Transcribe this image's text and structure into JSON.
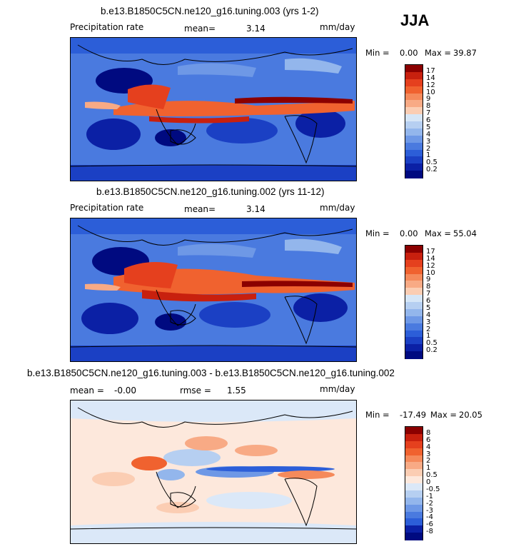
{
  "season": "JJA",
  "units": "mm/day",
  "chart_data": [
    {
      "type": "heatmap",
      "title": "b.e13.B1850C5CN.ne120_g16.tuning.003 (yrs 1-2)",
      "field_label": "Precipitation rate",
      "stat1_label": "mean=",
      "stat1_value": "3.14",
      "units": "mm/day",
      "min_label": "Min =",
      "min_value": "0.00",
      "max_label": "Max =",
      "max_value": "39.87",
      "colorbar_levels": [
        "17",
        "14",
        "12",
        "10",
        "9",
        "8",
        "7",
        "6",
        "5",
        "4",
        "3",
        "2",
        "1",
        "0.5",
        "0.2"
      ],
      "colorbar_colors": [
        "#8b0000",
        "#c8200e",
        "#e5401e",
        "#f0622f",
        "#f58a5b",
        "#f8aa85",
        "#fbcdb3",
        "#d6e6f7",
        "#b6cff1",
        "#93b6ec",
        "#6e98e6",
        "#4a7adf",
        "#2c5ed8",
        "#1b40c4",
        "#0b20a5",
        "#000a80"
      ],
      "grid": false
    },
    {
      "type": "heatmap",
      "title": "b.e13.B1850C5CN.ne120_g16.tuning.002 (yrs 11-12)",
      "field_label": "Precipitation rate",
      "stat1_label": "mean=",
      "stat1_value": "3.14",
      "units": "mm/day",
      "min_label": "Min =",
      "min_value": "0.00",
      "max_label": "Max =",
      "max_value": "55.04",
      "colorbar_levels": [
        "17",
        "14",
        "12",
        "10",
        "9",
        "8",
        "7",
        "6",
        "5",
        "4",
        "3",
        "2",
        "1",
        "0.5",
        "0.2"
      ],
      "colorbar_colors": [
        "#8b0000",
        "#c8200e",
        "#e5401e",
        "#f0622f",
        "#f58a5b",
        "#f8aa85",
        "#fbcdb3",
        "#d6e6f7",
        "#b6cff1",
        "#93b6ec",
        "#6e98e6",
        "#4a7adf",
        "#2c5ed8",
        "#1b40c4",
        "#0b20a5",
        "#000a80"
      ],
      "grid": false
    },
    {
      "type": "heatmap",
      "title": "b.e13.B1850C5CN.ne120_g16.tuning.003 - b.e13.B1850C5CN.ne120_g16.tuning.002",
      "stat1_label": "mean =",
      "stat1_value": "-0.00",
      "stat2_label": "rmse =",
      "stat2_value": "1.55",
      "units": "mm/day",
      "min_label": "Min =",
      "min_value": "-17.49",
      "max_label": "Max =",
      "max_value": "20.05",
      "colorbar_levels": [
        "8",
        "6",
        "4",
        "3",
        "2",
        "1",
        "0.5",
        "0",
        "-0.5",
        "-1",
        "-2",
        "-3",
        "-4",
        "-6",
        "-8"
      ],
      "colorbar_colors": [
        "#8b0000",
        "#c8200e",
        "#e5401e",
        "#f0622f",
        "#f58a5b",
        "#f8aa85",
        "#fbcdb3",
        "#fde8dc",
        "#dbe8f8",
        "#b6cff1",
        "#93b6ec",
        "#6e98e6",
        "#4a7adf",
        "#2c5ed8",
        "#0b20a5",
        "#000a80"
      ],
      "grid": false
    }
  ]
}
